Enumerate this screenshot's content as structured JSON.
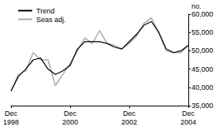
{
  "chart_data": {
    "type": "line",
    "y_label": "no.",
    "categories": [
      "Dec 1998",
      null,
      null,
      null,
      null,
      null,
      null,
      null,
      "Dec 2000",
      null,
      null,
      null,
      null,
      null,
      null,
      null,
      "Dec 2002",
      null,
      null,
      null,
      null,
      null,
      null,
      null,
      "Dec 2004"
    ],
    "series": [
      {
        "name": "Trend",
        "color": "#000000",
        "values": [
          39000,
          43000,
          45000,
          47500,
          48000,
          45000,
          43500,
          44500,
          46000,
          50500,
          52500,
          52500,
          52500,
          52000,
          51000,
          50500,
          52500,
          54500,
          57000,
          58000,
          55000,
          50500,
          49500,
          50000,
          51500
        ]
      },
      {
        "name": "Seas adj.",
        "color": "#aaaaaa",
        "values": [
          39000,
          43500,
          44500,
          49500,
          47500,
          47500,
          40500,
          43500,
          46500,
          50000,
          53500,
          52000,
          55500,
          52000,
          51500,
          50500,
          52000,
          54000,
          57500,
          59000,
          55000,
          50000,
          49500,
          49500,
          51500
        ]
      }
    ],
    "ylim": [
      35000,
      60000
    ],
    "yticks": [
      35000,
      40000,
      45000,
      50000,
      55000,
      60000
    ],
    "grid": false,
    "legend": "top-left"
  }
}
